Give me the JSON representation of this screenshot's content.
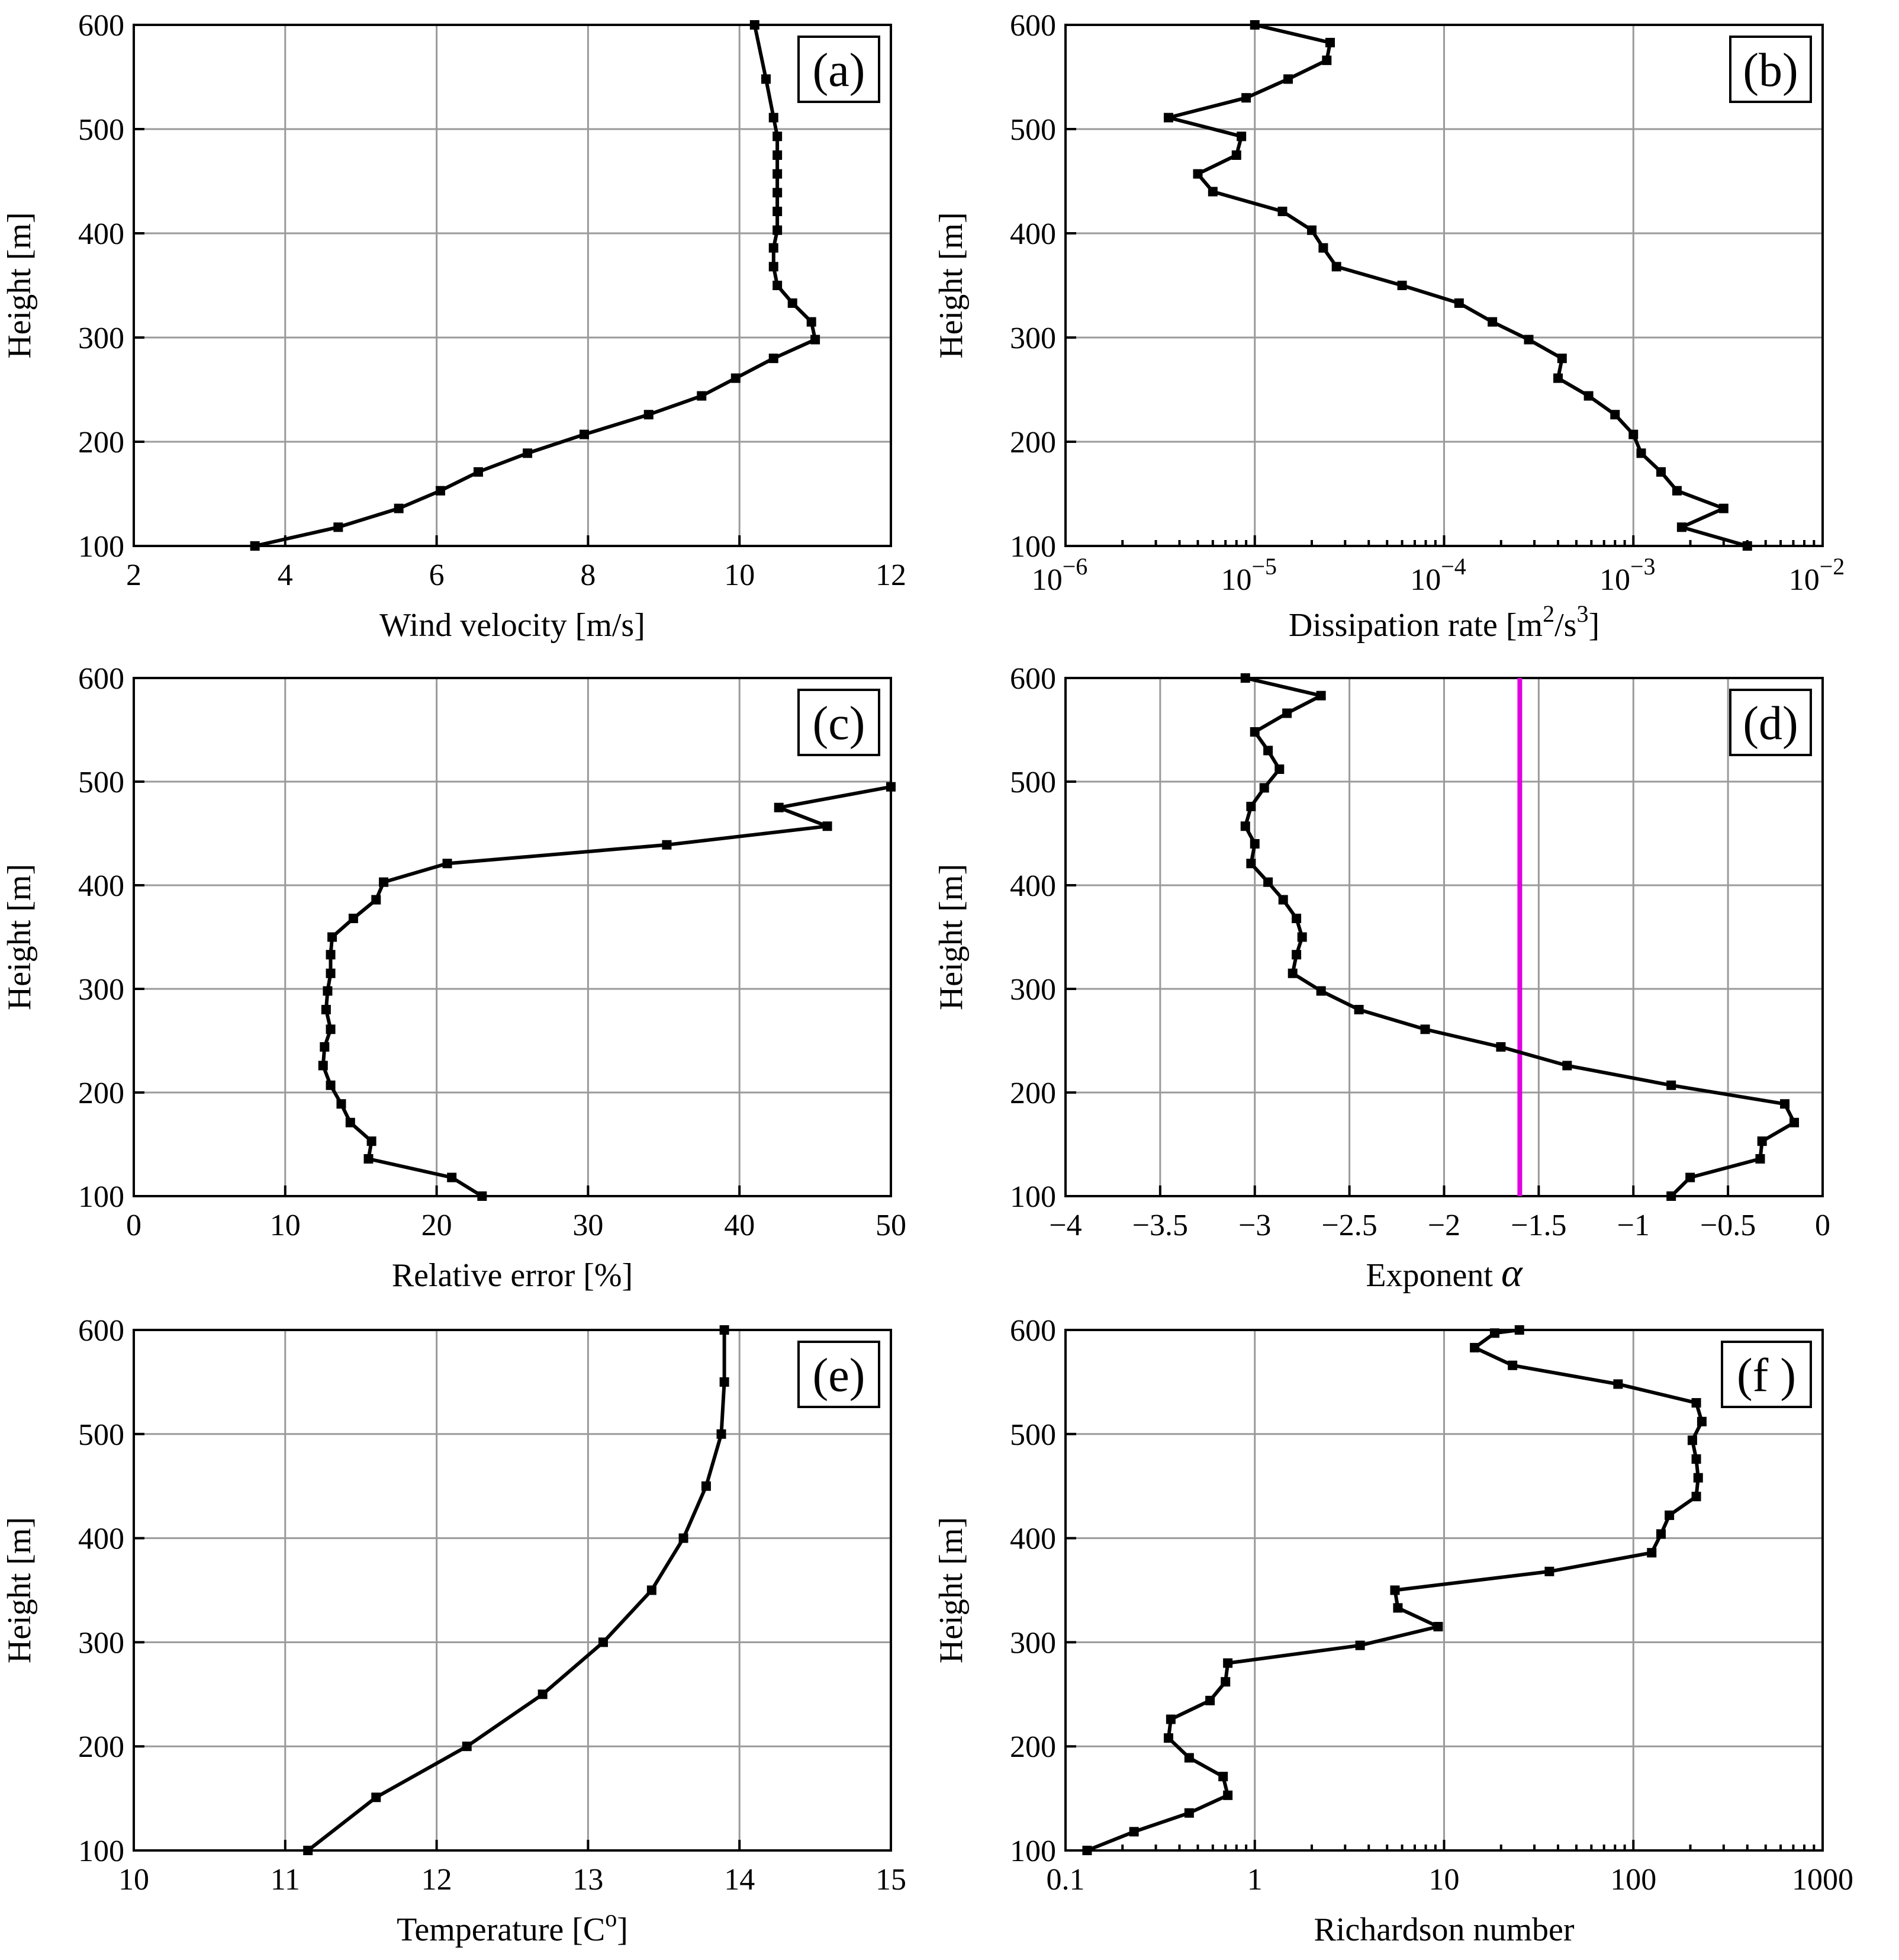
{
  "chart_data": [
    {
      "panel": "(a)",
      "type": "line",
      "xlabel": "Wind velocity [m/s]",
      "ylabel": "Height [m]",
      "xlim": [
        2,
        12
      ],
      "ylim": [
        100,
        600
      ],
      "xscale": "linear",
      "xticks": [
        2,
        4,
        6,
        8,
        10,
        12
      ],
      "xtick_labels": [
        "2",
        "4",
        "6",
        "8",
        "10",
        "12"
      ],
      "yticks": [
        100,
        200,
        300,
        400,
        500,
        600
      ],
      "ytick_labels": [
        "100",
        "200",
        "300",
        "400",
        "500",
        "600"
      ],
      "grid": true,
      "x": [
        3.6,
        4.7,
        5.5,
        6.05,
        6.55,
        7.2,
        7.95,
        8.8,
        9.5,
        9.95,
        10.45,
        11.0,
        10.95,
        10.7,
        10.5,
        10.45,
        10.45,
        10.5,
        10.5,
        10.5,
        10.5,
        10.5,
        10.5,
        10.45,
        10.35,
        10.2
      ],
      "y": [
        100,
        118,
        136,
        153,
        171,
        189,
        207,
        226,
        244,
        261,
        280,
        298,
        315,
        333,
        350,
        368,
        386,
        403,
        421,
        439,
        457,
        475,
        493,
        511,
        548,
        600
      ],
      "series_color": "#000000"
    },
    {
      "panel": "(b)",
      "type": "line",
      "xlabel": "Dissipation rate [m",
      "xlabel_sup1": "2",
      "xlabel_mid": "/s",
      "xlabel_sup2": "3",
      "xlabel_end": "]",
      "ylabel": "Height [m]",
      "xlim": [
        1e-06,
        0.01
      ],
      "ylim": [
        100,
        600
      ],
      "xscale": "log",
      "xtick_base": "10",
      "xtick_exponents": [
        "−6",
        "−5",
        "−4",
        "−3",
        "−2"
      ],
      "xticks": [
        1e-06,
        1e-05,
        0.0001,
        0.001,
        0.01
      ],
      "yticks": [
        100,
        200,
        300,
        400,
        500,
        600
      ],
      "ytick_labels": [
        "100",
        "200",
        "300",
        "400",
        "500",
        "600"
      ],
      "grid": true,
      "x": [
        0.004,
        0.0018,
        0.003,
        0.0017,
        0.0014,
        0.0011,
        0.001,
        0.0008,
        0.00058,
        0.0004,
        0.00042,
        0.00028,
        0.00018,
        0.00012,
        6e-05,
        2.7e-05,
        2.3e-05,
        2e-05,
        1.4e-05,
        6e-06,
        5e-06,
        8e-06,
        8.5e-06,
        3.5e-06,
        9e-06,
        1.5e-05,
        2.4e-05,
        2.5e-05,
        1e-05
      ],
      "y": [
        100,
        118,
        136,
        153,
        171,
        189,
        207,
        226,
        244,
        261,
        280,
        298,
        315,
        333,
        350,
        368,
        386,
        403,
        421,
        440,
        457,
        475,
        493,
        511,
        530,
        548,
        566,
        583,
        600
      ],
      "series_color": "#000000"
    },
    {
      "panel": "(c)",
      "type": "line",
      "xlabel": "Relative error [%]",
      "ylabel": "Height [m]",
      "xlim": [
        0,
        50
      ],
      "ylim": [
        100,
        600
      ],
      "xscale": "linear",
      "xticks": [
        0,
        10,
        20,
        30,
        40,
        50
      ],
      "xtick_labels": [
        "0",
        "10",
        "20",
        "30",
        "40",
        "50"
      ],
      "yticks": [
        100,
        200,
        300,
        400,
        500,
        600
      ],
      "ytick_labels": [
        "100",
        "200",
        "300",
        "400",
        "500",
        "600"
      ],
      "grid": true,
      "x": [
        23,
        21,
        15.5,
        15.7,
        14.3,
        13.7,
        13,
        12.5,
        12.6,
        13,
        12.7,
        12.8,
        13,
        13,
        13.1,
        14.5,
        16,
        16.5,
        20.7,
        35.2,
        45.8,
        42.6,
        50
      ],
      "y": [
        100,
        118,
        136,
        153,
        171,
        189,
        207,
        226,
        244,
        261,
        280,
        298,
        315,
        333,
        350,
        368,
        386,
        403,
        421,
        439,
        457,
        475,
        495
      ],
      "series_color": "#000000"
    },
    {
      "panel": "(d)",
      "type": "line",
      "xlabel": "Exponent",
      "xlabel_symbol": "α",
      "ylabel": "Height [m]",
      "xlim": [
        -4,
        0
      ],
      "ylim": [
        100,
        600
      ],
      "xscale": "linear",
      "xticks": [
        -4,
        -3.5,
        -3,
        -2.5,
        -2,
        -1.5,
        -1,
        -0.5,
        0
      ],
      "xtick_labels": [
        "−4",
        "−3.5",
        "−3",
        "−2.5",
        "−2",
        "−1.5",
        "−1",
        "−0.5",
        "0"
      ],
      "yticks": [
        100,
        200,
        300,
        400,
        500,
        600
      ],
      "ytick_labels": [
        "100",
        "200",
        "300",
        "400",
        "500",
        "600"
      ],
      "grid": true,
      "x": [
        -0.8,
        -0.7,
        -0.33,
        -0.32,
        -0.15,
        -0.2,
        -0.8,
        -1.35,
        -1.7,
        -2.1,
        -2.45,
        -2.65,
        -2.8,
        -2.78,
        -2.75,
        -2.78,
        -2.85,
        -2.93,
        -3.02,
        -3.0,
        -3.05,
        -3.02,
        -2.95,
        -2.87,
        -2.93,
        -3.0,
        -2.83,
        -2.65,
        -3.05
      ],
      "y": [
        100,
        118,
        136,
        153,
        171,
        189,
        207,
        226,
        244,
        261,
        280,
        298,
        315,
        333,
        350,
        368,
        386,
        403,
        421,
        440,
        457,
        476,
        494,
        512,
        530,
        548,
        566,
        583,
        600
      ],
      "series_color": "#000000",
      "vline": {
        "x": -1.6,
        "color": "#e000e0"
      }
    },
    {
      "panel": "(e)",
      "type": "line",
      "xlabel": "Temperature [C",
      "xlabel_sup": "o",
      "xlabel_end": "]",
      "ylabel": "Height [m]",
      "xlim": [
        10,
        15
      ],
      "ylim": [
        100,
        600
      ],
      "xscale": "linear",
      "xticks": [
        10,
        11,
        12,
        13,
        14,
        15
      ],
      "xtick_labels": [
        "10",
        "11",
        "12",
        "13",
        "14",
        "15"
      ],
      "yticks": [
        100,
        200,
        300,
        400,
        500,
        600
      ],
      "ytick_labels": [
        "100",
        "200",
        "300",
        "400",
        "500",
        "600"
      ],
      "grid": true,
      "x": [
        11.15,
        11.6,
        12.2,
        12.7,
        13.1,
        13.42,
        13.63,
        13.78,
        13.88,
        13.9,
        13.9
      ],
      "y": [
        100,
        151,
        200,
        250,
        300,
        350,
        400,
        450,
        500,
        550,
        600
      ],
      "series_color": "#000000"
    },
    {
      "panel": "(f )",
      "type": "line",
      "xlabel": "Richardson number",
      "ylabel": "Height [m]",
      "xlim": [
        0.1,
        1000
      ],
      "ylim": [
        100,
        600
      ],
      "xscale": "log",
      "xticks": [
        0.1,
        1,
        10,
        100,
        1000
      ],
      "xtick_labels": [
        "0.1",
        "1",
        "10",
        "100",
        "1000"
      ],
      "yticks": [
        100,
        200,
        300,
        400,
        500,
        600
      ],
      "ytick_labels": [
        "100",
        "200",
        "300",
        "400",
        "500",
        "600"
      ],
      "grid": true,
      "x": [
        0.13,
        0.23,
        0.45,
        0.72,
        0.68,
        0.45,
        0.35,
        0.36,
        0.58,
        0.7,
        0.72,
        3.6,
        9.3,
        5.7,
        5.5,
        36,
        125,
        140,
        155,
        215,
        220,
        215,
        205,
        230,
        215,
        83,
        23,
        14.5,
        18.5,
        25
      ],
      "y": [
        100,
        118,
        136,
        153,
        171,
        189,
        208,
        226,
        244,
        262,
        280,
        297,
        315,
        333,
        350,
        368,
        386,
        404,
        422,
        440,
        458,
        476,
        494,
        512,
        530,
        548,
        566,
        583,
        597,
        600
      ],
      "series_color": "#000000"
    }
  ]
}
